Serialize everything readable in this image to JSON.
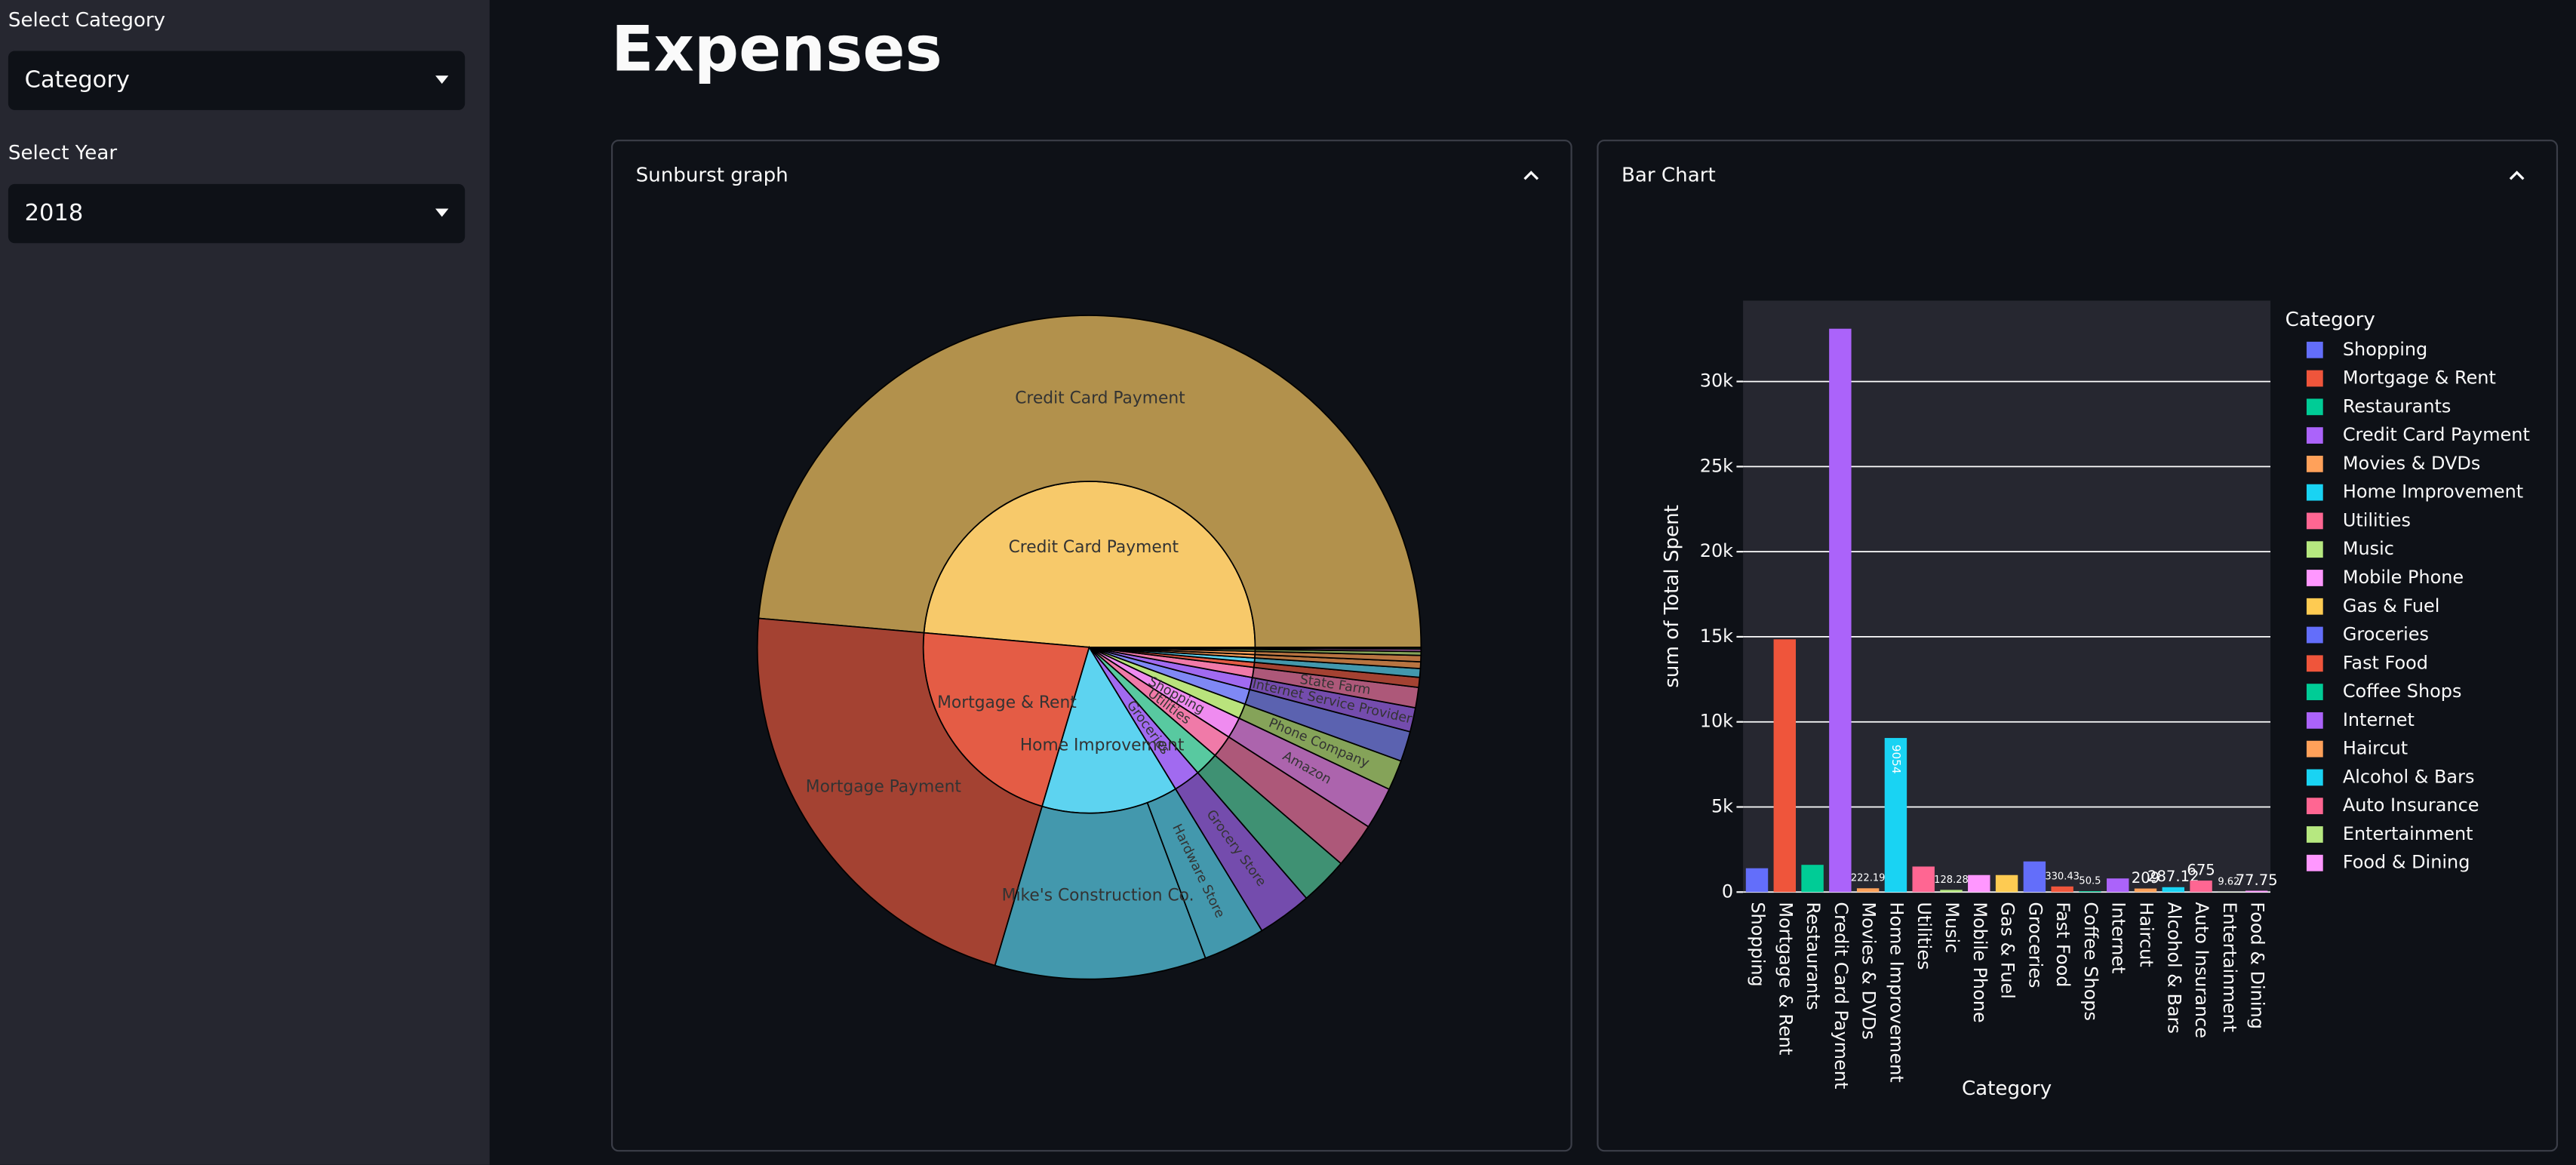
{
  "sidebar": {
    "category_label": "Select Category",
    "category_value": "Category",
    "year_label": "Select Year",
    "year_value": "2018"
  },
  "title": "Expenses",
  "chart_data": [
    {
      "type": "sunburst",
      "title": "Sunburst graph",
      "inner": {
        "labels": [
          "Credit Card Payment",
          "Mortgage & Rent",
          "Home Improvement",
          "Groceries",
          null,
          "Utilities",
          "Shopping",
          null,
          null,
          null,
          null,
          null,
          null,
          null,
          null,
          null,
          null,
          null,
          null
        ],
        "values": [
          33100,
          14850,
          9054,
          1800,
          1600,
          1500,
          1400,
          1000,
          1000,
          800,
          675,
          330.43,
          287.12,
          222.19,
          209,
          128.28,
          77.75,
          50.5,
          9.62
        ],
        "colors": [
          "#f7c96a",
          "#e45c45",
          "#5dd3f0",
          "#a16af0",
          "#58c9a0",
          "#f07aa8",
          "#ef8bf0",
          "#b9e37c",
          "#7f88f5",
          "#a16af0",
          "#f07aa8",
          "#e45c45",
          "#5dd3f0",
          "#ffa15a",
          "#ffa15a",
          "#b9e37c",
          "#ef8bf0",
          "#58c9a0",
          "#b9e37c"
        ]
      },
      "outer": {
        "labels": [
          "Credit Card Payment",
          "Mortgage Payment",
          "Mike's Construction Co.",
          "Hardware Store",
          "Grocery Store",
          null,
          null,
          "Amazon",
          "Phone Company",
          null,
          "Internet Service Provider",
          "State Farm",
          null,
          null,
          null,
          null,
          null,
          null,
          null,
          null
        ],
        "parents": [
          0,
          1,
          2,
          2,
          3,
          4,
          5,
          6,
          7,
          8,
          9,
          10,
          11,
          12,
          13,
          14,
          15,
          16,
          17,
          18
        ],
        "values": [
          33100,
          14850,
          7000,
          2054,
          1800,
          1600,
          1500,
          1400,
          1000,
          1000,
          800,
          675,
          330.43,
          287.12,
          222.19,
          209,
          128.28,
          77.75,
          50.5,
          9.62
        ]
      }
    },
    {
      "type": "bar",
      "title": "Bar Chart",
      "xlabel": "Category",
      "ylabel": "sum of Total Spent",
      "legend_title": "Category",
      "legend": "right",
      "grid": true,
      "categories": [
        "Shopping",
        "Mortgage & Rent",
        "Restaurants",
        "Credit Card Payment",
        "Movies & DVDs",
        "Home Improvement",
        "Utilities",
        "Music",
        "Mobile Phone",
        "Gas & Fuel",
        "Groceries",
        "Fast Food",
        "Coffee Shops",
        "Internet",
        "Haircut",
        "Alcohol & Bars",
        "Auto Insurance",
        "Entertainment",
        "Food & Dining"
      ],
      "values": [
        1400,
        14850,
        1600,
        33100,
        222.19,
        9054,
        1500,
        128.28,
        1000,
        1000,
        1800,
        330.43,
        50.5,
        800,
        209,
        287.12,
        675,
        9.62,
        77.75
      ],
      "value_labels": [
        null,
        null,
        null,
        null,
        "222.19",
        "9054",
        null,
        "128.28",
        null,
        null,
        null,
        "330.43",
        "50.5",
        null,
        "209",
        "287.12",
        "675",
        "9.62",
        "77.75"
      ],
      "colors": [
        "#636efa",
        "#ef553b",
        "#00cc96",
        "#ab63fa",
        "#ffa15a",
        "#19d3f3",
        "#ff6692",
        "#b6e880",
        "#ff97ff",
        "#fecb52",
        "#636efa",
        "#ef553b",
        "#00cc96",
        "#ab63fa",
        "#ffa15a",
        "#19d3f3",
        "#ff6692",
        "#b6e880",
        "#ff97ff"
      ],
      "ylim": [
        0,
        34750
      ],
      "yticks": [
        0,
        {
          "value": 5000,
          "label": "5k"
        },
        {
          "value": 10000,
          "label": "10k"
        },
        {
          "value": 15000,
          "label": "15k"
        },
        {
          "value": 20000,
          "label": "20k"
        },
        {
          "value": 25000,
          "label": "25k"
        },
        {
          "value": 30000,
          "label": "30k"
        }
      ]
    }
  ]
}
